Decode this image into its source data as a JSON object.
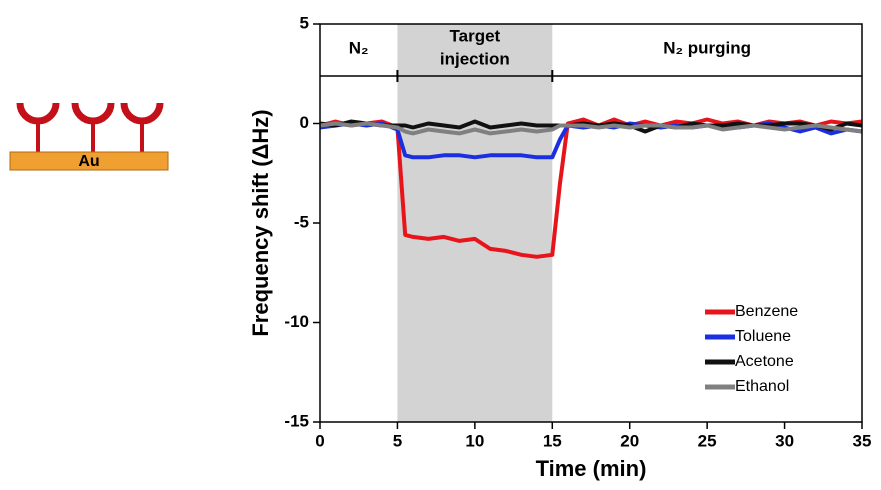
{
  "chart_data": {
    "type": "line",
    "icon": {
      "label": "Au"
    },
    "x_label": "Time (min)",
    "y_label": "Frequency shift (ΔHz)",
    "phase_labels": {
      "before": "N₂",
      "during_line1": "Target",
      "during_line2": "injection",
      "after": "N₂ purging"
    },
    "shaded_region": [
      5,
      15
    ],
    "x": [
      0,
      1,
      2,
      3,
      4,
      5,
      5.5,
      6,
      7,
      8,
      9,
      10,
      11,
      12,
      13,
      14,
      15,
      15.5,
      16,
      17,
      18,
      19,
      20,
      21,
      22,
      23,
      24,
      25,
      26,
      27,
      28,
      29,
      30,
      31,
      32,
      33,
      34,
      35
    ],
    "series": [
      {
        "name": "Benzene",
        "color": "#e8141b",
        "values": [
          -0.1,
          0.1,
          -0.1,
          0,
          0.1,
          -0.2,
          -5.6,
          -5.7,
          -5.8,
          -5.7,
          -5.9,
          -5.8,
          -6.3,
          -6.4,
          -6.6,
          -6.7,
          -6.6,
          -3,
          0,
          0.2,
          -0.1,
          0.2,
          -0.1,
          0.1,
          -0.1,
          0.1,
          0,
          0.2,
          0,
          0.1,
          -0.1,
          0.1,
          0,
          0.1,
          -0.1,
          0.1,
          0,
          0.1
        ]
      },
      {
        "name": "Toluene",
        "color": "#1a2fe0",
        "values": [
          -0.2,
          -0.1,
          0,
          -0.1,
          0,
          -0.3,
          -1.6,
          -1.7,
          -1.7,
          -1.6,
          -1.6,
          -1.7,
          -1.6,
          -1.6,
          -1.6,
          -1.7,
          -1.7,
          -0.8,
          -0.1,
          -0.2,
          -0.1,
          -0.2,
          0,
          -0.1,
          -0.2,
          -0.1,
          -0.2,
          -0.1,
          -0.1,
          -0.2,
          -0.1,
          0,
          -0.2,
          -0.4,
          -0.2,
          -0.5,
          -0.3,
          -0.4
        ]
      },
      {
        "name": "Acetone",
        "color": "#111111",
        "values": [
          0,
          -0.1,
          0.1,
          0,
          -0.1,
          -0.1,
          -0.1,
          -0.2,
          0,
          -0.1,
          -0.2,
          0.1,
          -0.2,
          -0.1,
          0,
          -0.1,
          -0.1,
          -0.1,
          -0.1,
          0,
          -0.1,
          0,
          -0.1,
          -0.4,
          -0.1,
          -0.2,
          0,
          -0.1,
          -0.1,
          0,
          -0.1,
          -0.1,
          0,
          0,
          -0.1,
          -0.3,
          0,
          -0.1
        ]
      },
      {
        "name": "Ethanol",
        "color": "#808080",
        "values": [
          -0.1,
          0,
          -0.1,
          0,
          -0.1,
          -0.2,
          -0.4,
          -0.5,
          -0.3,
          -0.4,
          -0.5,
          -0.3,
          -0.5,
          -0.4,
          -0.3,
          -0.4,
          -0.3,
          -0.1,
          -0.1,
          -0.1,
          -0.2,
          -0.1,
          -0.2,
          -0.1,
          -0.1,
          -0.2,
          -0.2,
          -0.1,
          -0.3,
          -0.2,
          -0.1,
          -0.2,
          -0.3,
          -0.2,
          -0.1,
          -0.2,
          -0.3,
          -0.4
        ]
      }
    ],
    "xlim": [
      0,
      35
    ],
    "xticks": [
      0,
      5,
      10,
      15,
      20,
      25,
      30,
      35
    ],
    "ylim": [
      -15,
      5
    ],
    "yticks": [
      -15,
      -10,
      -5,
      0,
      5
    ],
    "legend": "lower right"
  }
}
